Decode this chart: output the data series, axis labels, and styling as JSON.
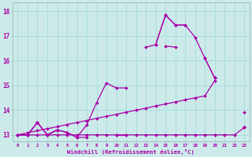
{
  "xlabel": "Windchill (Refroidissement éolien,°C)",
  "background_color": "#cceaea",
  "grid_color": "#aadddd",
  "line_color": "#aa00aa",
  "x_values": [
    0,
    1,
    2,
    3,
    4,
    5,
    6,
    7,
    8,
    9,
    10,
    11,
    12,
    13,
    14,
    15,
    16,
    17,
    18,
    19,
    20,
    21,
    22,
    23
  ],
  "ylim": [
    12.75,
    18.35
  ],
  "xlim": [
    -0.5,
    23.5
  ],
  "yticks": [
    13,
    14,
    15,
    16,
    17,
    18
  ],
  "xticks": [
    0,
    1,
    2,
    3,
    4,
    5,
    6,
    7,
    8,
    9,
    10,
    11,
    12,
    13,
    14,
    15,
    16,
    17,
    18,
    19,
    20,
    21,
    22,
    23
  ],
  "line_A": [
    13.0,
    13.0,
    13.5,
    13.0,
    13.2,
    13.1,
    12.9,
    13.4,
    14.3,
    15.1,
    14.9,
    14.9,
    null,
    16.55,
    16.65,
    17.85,
    17.45,
    17.45,
    16.95,
    16.1,
    15.3,
    null,
    null,
    13.9
  ],
  "line_B": [
    13.0,
    13.0,
    13.5,
    13.0,
    13.2,
    13.1,
    12.9,
    12.9,
    null,
    null,
    13.0,
    13.0,
    null,
    null,
    null,
    16.6,
    16.55,
    null,
    null,
    16.1,
    15.3,
    null,
    null,
    13.3
  ],
  "line_C": [
    13.0,
    13.0,
    13.5,
    13.0,
    13.2,
    null,
    null,
    null,
    null,
    null,
    null,
    null,
    null,
    null,
    16.65,
    17.85,
    17.45,
    17.45,
    null,
    null,
    null,
    null,
    null,
    13.3
  ],
  "line_D": [
    13.0,
    13.08,
    13.17,
    13.25,
    13.33,
    13.42,
    13.5,
    13.58,
    13.67,
    13.75,
    13.83,
    13.92,
    14.0,
    14.08,
    14.17,
    14.25,
    14.33,
    14.42,
    14.5,
    14.58,
    15.2,
    null,
    null,
    13.3
  ],
  "line_E": [
    13.0,
    13.0,
    13.0,
    13.0,
    13.0,
    13.0,
    13.0,
    13.0,
    13.0,
    13.0,
    13.0,
    13.0,
    13.0,
    13.0,
    13.0,
    13.0,
    13.0,
    13.0,
    13.0,
    13.0,
    13.0,
    13.0,
    13.0,
    13.3
  ]
}
